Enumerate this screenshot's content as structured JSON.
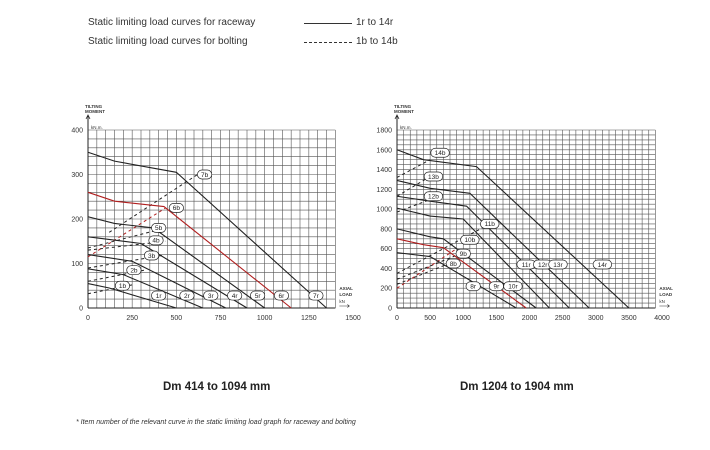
{
  "legend": {
    "raceway_label": "Static limiting load curves for raceway",
    "raceway_range": "1r to 14r",
    "bolting_label": "Static limiting load curves for bolting",
    "bolting_range": "1b to 14b"
  },
  "footnote": "* Item number of the relevant curve in the static limiting load graph for raceway and bolting",
  "colors": {
    "line": "#222222",
    "highlight": "#b01e1e",
    "grid": "#555555"
  },
  "chart_data": [
    {
      "type": "line",
      "title": "Dm 414 to 1094 mm",
      "ylabel_top": "TILTING",
      "ylabel_bottom": "MOMENT",
      "yunit": "kN.m.",
      "xlabel_top": "AXIAL",
      "xlabel_bottom": "LOAD",
      "xunit": "kN",
      "xlim": [
        0,
        1500
      ],
      "ylim": [
        0,
        400
      ],
      "grid_xlim": [
        0,
        1400
      ],
      "xticks": [
        0,
        250,
        500,
        750,
        1000,
        1250,
        1500
      ],
      "yticks": [
        0,
        100,
        200,
        300,
        400
      ],
      "grid_x_step": 50,
      "grid_y_step": 20,
      "raceway": [
        {
          "name": "1r",
          "highlight": false,
          "points": [
            [
              0,
              55
            ],
            [
              120,
              45
            ],
            [
              500,
              0
            ]
          ],
          "label_at": [
            400,
            28
          ]
        },
        {
          "name": "2r",
          "highlight": false,
          "points": [
            [
              0,
              88
            ],
            [
              200,
              75
            ],
            [
              650,
              0
            ]
          ],
          "label_at": [
            560,
            28
          ]
        },
        {
          "name": "3r",
          "highlight": false,
          "points": [
            [
              0,
              120
            ],
            [
              250,
              105
            ],
            [
              780,
              0
            ]
          ],
          "label_at": [
            695,
            28
          ]
        },
        {
          "name": "4r",
          "highlight": false,
          "points": [
            [
              0,
              160
            ],
            [
              300,
              145
            ],
            [
              900,
              0
            ]
          ],
          "label_at": [
            830,
            28
          ]
        },
        {
          "name": "5r",
          "highlight": false,
          "points": [
            [
              0,
              205
            ],
            [
              150,
              190
            ],
            [
              370,
              180
            ],
            [
              1000,
              0
            ]
          ],
          "label_at": [
            960,
            28
          ]
        },
        {
          "name": "6r",
          "highlight": true,
          "points": [
            [
              0,
              260
            ],
            [
              150,
              240
            ],
            [
              430,
              228
            ],
            [
              1150,
              0
            ]
          ],
          "label_at": [
            1095,
            28
          ]
        },
        {
          "name": "7r",
          "highlight": false,
          "points": [
            [
              0,
              350
            ],
            [
              150,
              330
            ],
            [
              500,
              305
            ],
            [
              1350,
              0
            ]
          ],
          "label_at": [
            1290,
            28
          ]
        }
      ],
      "bolting": [
        {
          "name": "1b",
          "highlight": false,
          "points": [
            [
              0,
              32
            ],
            [
              250,
              52
            ]
          ],
          "label_at": [
            195,
            50
          ]
        },
        {
          "name": "2b",
          "highlight": false,
          "points": [
            [
              0,
              60
            ],
            [
              320,
              85
            ]
          ],
          "label_at": [
            260,
            85
          ]
        },
        {
          "name": "3b",
          "highlight": false,
          "points": [
            [
              0,
              90
            ],
            [
              420,
              118
            ]
          ],
          "label_at": [
            360,
            118
          ]
        },
        {
          "name": "4b",
          "highlight": false,
          "points": [
            [
              0,
              130
            ],
            [
              440,
              150
            ]
          ],
          "label_at": [
            385,
            152
          ]
        },
        {
          "name": "5b",
          "highlight": false,
          "points": [
            [
              0,
              135
            ],
            [
              440,
              180
            ]
          ],
          "label_at": [
            400,
            180
          ]
        },
        {
          "name": "6b",
          "highlight": true,
          "points": [
            [
              0,
              115
            ],
            [
              440,
              225
            ]
          ],
          "label_at": [
            500,
            225
          ]
        },
        {
          "name": "7b",
          "highlight": false,
          "points": [
            [
              120,
              170
            ],
            [
              620,
              300
            ]
          ],
          "label_at": [
            660,
            300
          ]
        }
      ]
    },
    {
      "type": "line",
      "title": "Dm 1204 to 1904 mm",
      "ylabel_top": "TILTING",
      "ylabel_bottom": "MOMENT",
      "yunit": "kN.m.",
      "xlabel_top": "AXIAL",
      "xlabel_bottom": "LOAD",
      "xunit": "kN",
      "xlim": [
        0,
        4000
      ],
      "ylim": [
        0,
        1800
      ],
      "grid_xlim": [
        0,
        3900
      ],
      "xticks": [
        0,
        500,
        1000,
        1500,
        2000,
        2500,
        3000,
        3500,
        4000
      ],
      "yticks": [
        0,
        200,
        400,
        600,
        800,
        1000,
        1200,
        1400,
        1600,
        1800
      ],
      "grid_x_step": 100,
      "grid_y_step": 50,
      "raceway": [
        {
          "name": "8r",
          "highlight": false,
          "points": [
            [
              0,
              560
            ],
            [
              500,
              520
            ],
            [
              1800,
              0
            ]
          ],
          "label_at": [
            1150,
            220
          ]
        },
        {
          "name": "9r",
          "highlight": false,
          "points": [
            [
              0,
              800
            ],
            [
              500,
              720
            ],
            [
              700,
              700
            ],
            [
              2100,
              0
            ]
          ],
          "label_at": [
            1500,
            220
          ]
        },
        {
          "name": "10r",
          "highlight": true,
          "points": [
            [
              0,
              700
            ],
            [
              400,
              640
            ],
            [
              700,
              610
            ],
            [
              1950,
              0
            ]
          ],
          "label_at": [
            1750,
            220
          ]
        },
        {
          "name": "11r",
          "highlight": false,
          "points": [
            [
              0,
              1010
            ],
            [
              500,
              930
            ],
            [
              1000,
              900
            ],
            [
              2300,
              0
            ]
          ],
          "label_at": [
            1950,
            440
          ]
        },
        {
          "name": "12r",
          "highlight": false,
          "points": [
            [
              0,
              1130
            ],
            [
              500,
              1080
            ],
            [
              1050,
              1030
            ],
            [
              2600,
              0
            ]
          ],
          "label_at": [
            2200,
            440
          ]
        },
        {
          "name": "13r",
          "highlight": false,
          "points": [
            [
              0,
              1290
            ],
            [
              500,
              1210
            ],
            [
              1100,
              1160
            ],
            [
              2900,
              0
            ]
          ],
          "label_at": [
            2430,
            440
          ]
        },
        {
          "name": "14r",
          "highlight": false,
          "points": [
            [
              0,
              1600
            ],
            [
              400,
              1500
            ],
            [
              1200,
              1430
            ],
            [
              3500,
              0
            ]
          ],
          "label_at": [
            3100,
            440
          ]
        }
      ],
      "bolting": [
        {
          "name": "8b",
          "highlight": false,
          "points": [
            [
              0,
              240
            ],
            [
              900,
              480
            ]
          ],
          "label_at": [
            850,
            450
          ]
        },
        {
          "name": "9b",
          "highlight": false,
          "points": [
            [
              0,
              290
            ],
            [
              1000,
              560
            ]
          ],
          "label_at": [
            1000,
            550
          ]
        },
        {
          "name": "10b",
          "highlight": true,
          "points": [
            [
              0,
              200
            ],
            [
              900,
              600
            ]
          ],
          "label_at": [
            1100,
            690
          ]
        },
        {
          "name": "11b",
          "highlight": false,
          "points": [
            [
              0,
              350
            ],
            [
              1400,
              850
            ]
          ],
          "label_at": [
            1400,
            850
          ]
        },
        {
          "name": "12b",
          "highlight": false,
          "points": [
            [
              0,
              970
            ],
            [
              550,
              1110
            ]
          ],
          "label_at": [
            550,
            1130
          ]
        },
        {
          "name": "13b",
          "highlight": false,
          "points": [
            [
              0,
              1130
            ],
            [
              450,
              1310
            ]
          ],
          "label_at": [
            550,
            1330
          ]
        },
        {
          "name": "14b",
          "highlight": false,
          "points": [
            [
              0,
              1320
            ],
            [
              500,
              1500
            ]
          ],
          "label_at": [
            650,
            1570
          ]
        }
      ]
    }
  ]
}
